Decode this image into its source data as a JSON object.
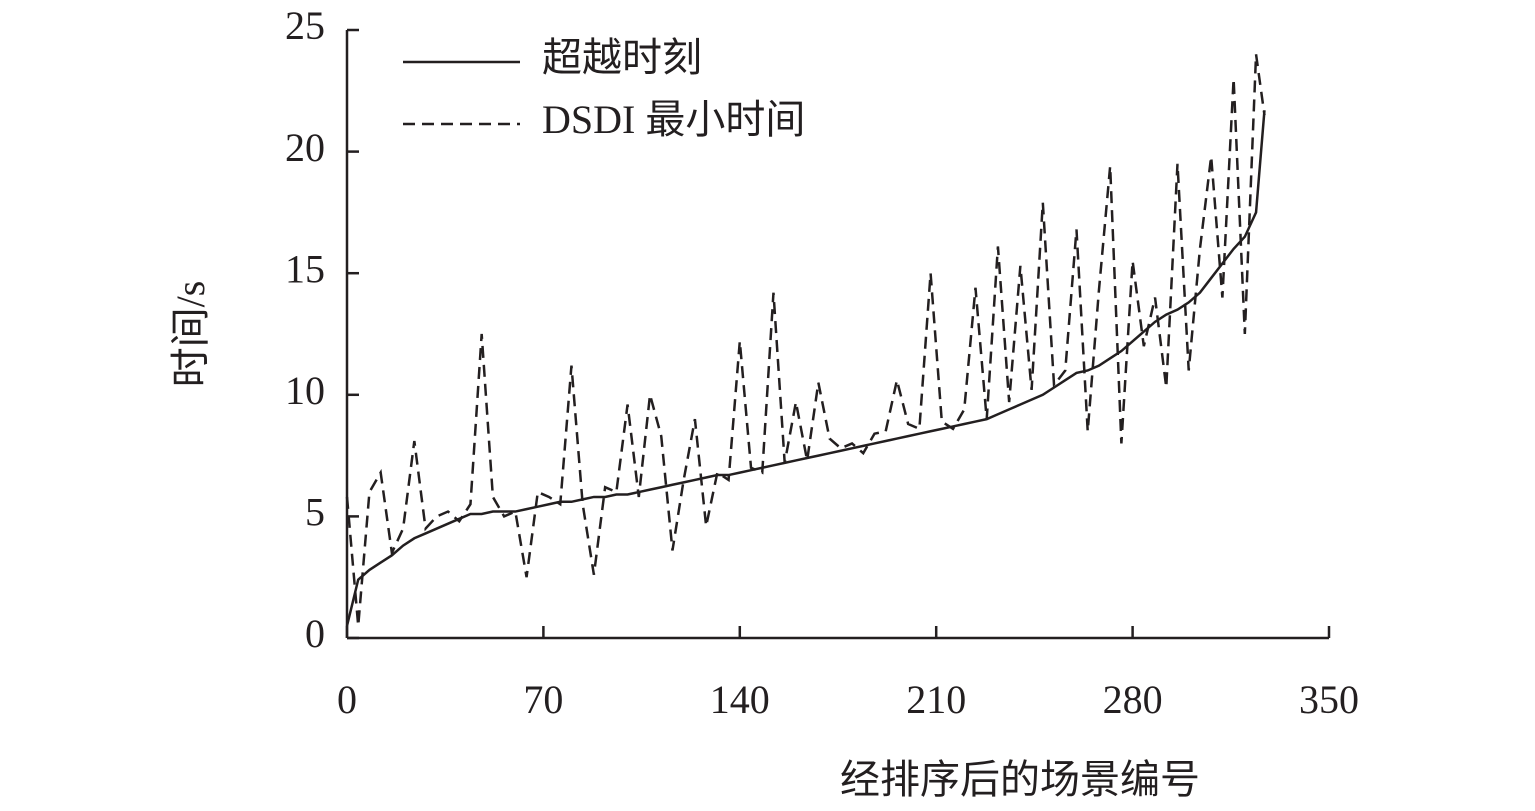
{
  "chart_data": {
    "type": "line",
    "xlabel": "经排序后的场景编号",
    "ylabel": "时间/s",
    "x": [
      0,
      4,
      8,
      12,
      16,
      20,
      24,
      28,
      32,
      36,
      40,
      44,
      48,
      52,
      56,
      60,
      64,
      68,
      72,
      76,
      80,
      84,
      88,
      92,
      96,
      100,
      104,
      108,
      112,
      116,
      120,
      124,
      128,
      132,
      136,
      140,
      144,
      148,
      152,
      156,
      160,
      164,
      168,
      172,
      176,
      180,
      184,
      188,
      192,
      196,
      200,
      204,
      208,
      212,
      216,
      220,
      224,
      228,
      232,
      236,
      240,
      244,
      248,
      252,
      256,
      260,
      264,
      268,
      272,
      276,
      280,
      284,
      288,
      292,
      296,
      300,
      304,
      308,
      312,
      316,
      320,
      324,
      327
    ],
    "series": [
      {
        "name": "超越时刻",
        "color": "#231f20",
        "dash": false,
        "values": [
          0.5,
          2.4,
          2.8,
          3.1,
          3.4,
          3.8,
          4.1,
          4.3,
          4.5,
          4.7,
          4.9,
          5.1,
          5.1,
          5.2,
          5.2,
          5.2,
          5.3,
          5.4,
          5.5,
          5.6,
          5.6,
          5.7,
          5.8,
          5.8,
          5.9,
          5.9,
          6.0,
          6.1,
          6.2,
          6.3,
          6.4,
          6.5,
          6.6,
          6.7,
          6.7,
          6.8,
          6.9,
          7.0,
          7.1,
          7.2,
          7.3,
          7.4,
          7.5,
          7.6,
          7.7,
          7.8,
          7.9,
          8.0,
          8.1,
          8.2,
          8.3,
          8.4,
          8.5,
          8.6,
          8.7,
          8.8,
          8.9,
          9.0,
          9.2,
          9.4,
          9.6,
          9.8,
          10.0,
          10.3,
          10.6,
          10.9,
          11.0,
          11.2,
          11.5,
          11.8,
          12.2,
          12.6,
          13.0,
          13.3,
          13.5,
          13.8,
          14.2,
          14.8,
          15.4,
          16.0,
          16.5,
          17.5,
          21.7
        ]
      },
      {
        "name": "DSDI 最小时间",
        "color": "#231f20",
        "dash": true,
        "values": [
          5.8,
          0.5,
          6.0,
          6.8,
          3.5,
          4.5,
          8.1,
          4.5,
          5.0,
          5.2,
          4.8,
          5.5,
          12.5,
          5.8,
          5.0,
          5.2,
          2.5,
          6.0,
          5.8,
          5.5,
          11.2,
          5.5,
          2.6,
          6.2,
          6.0,
          9.6,
          5.8,
          10.0,
          8.3,
          3.6,
          6.5,
          9.0,
          4.6,
          6.8,
          6.5,
          12.2,
          7.0,
          6.8,
          14.2,
          7.2,
          9.7,
          7.3,
          10.5,
          8.2,
          7.8,
          8.0,
          7.6,
          8.4,
          8.5,
          10.6,
          8.8,
          8.6,
          15.0,
          8.9,
          8.6,
          9.4,
          14.4,
          9.0,
          16.1,
          9.7,
          15.3,
          10.2,
          17.9,
          10.4,
          11.0,
          16.8,
          8.5,
          14.3,
          19.4,
          8.0,
          15.5,
          12.0,
          14.0,
          10.3,
          19.5,
          11.0,
          16.0,
          19.8,
          14.0,
          23.0,
          12.5,
          24.0,
          21.5
        ]
      }
    ],
    "xlim": [
      0,
      350
    ],
    "xticks": [
      0,
      70,
      140,
      210,
      280,
      350
    ],
    "ylim": [
      0,
      25
    ],
    "yticks": [
      0,
      5,
      10,
      15,
      20,
      25
    ],
    "grid": false,
    "legend": "upper left"
  }
}
